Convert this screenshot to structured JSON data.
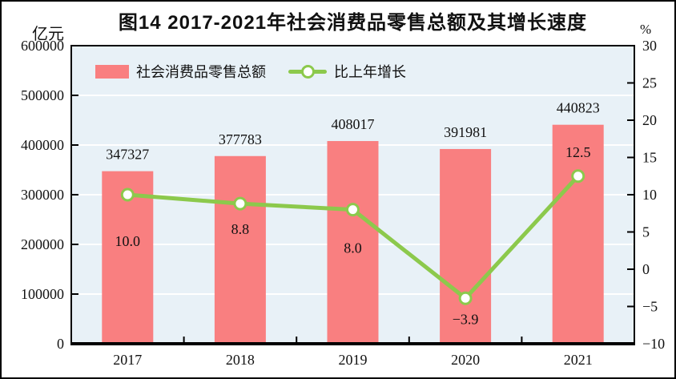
{
  "chart_data": {
    "type": "bar+line",
    "title": "图14  2017-2021年社会消费品零售总额及其增长速度",
    "categories": [
      "2017",
      "2018",
      "2019",
      "2020",
      "2021"
    ],
    "series": [
      {
        "name": "社会消费品零售总额",
        "type": "bar",
        "axis": "left",
        "values": [
          347327,
          377783,
          408017,
          391981,
          440823
        ],
        "labels": [
          "347327",
          "377783",
          "408017",
          "391981",
          "440823"
        ],
        "color": "#f97f80"
      },
      {
        "name": "比上年增长",
        "type": "line",
        "axis": "right",
        "values": [
          10.0,
          8.8,
          8.0,
          -3.9,
          12.5
        ],
        "labels": [
          "10.0",
          "8.8",
          "8.0",
          "−3.9",
          "12.5"
        ],
        "color": "#8cc94c",
        "marker_fill": "#ffffff"
      }
    ],
    "left_axis": {
      "unit": "亿元",
      "min": 0,
      "max": 600000,
      "tick_step": 100000,
      "tick_labels": [
        "600000",
        "500000",
        "400000",
        "300000",
        "200000",
        "100000",
        "0"
      ]
    },
    "right_axis": {
      "unit": "%",
      "min": -10,
      "max": 30,
      "tick_step": 5,
      "tick_labels": [
        "30",
        "25",
        "20",
        "15",
        "10",
        "5",
        "0",
        "−5",
        "−10"
      ]
    },
    "legend_position": "top-left-inside",
    "grid": "horizontal",
    "grid_color": "#ffffff",
    "plot_bg": "#e8f1f7",
    "frame_color": "#000000",
    "text_color": "#111111",
    "rate_label_dy": [
      64,
      38,
      54,
      32,
      -24
    ],
    "bar_label_dy": -15
  }
}
